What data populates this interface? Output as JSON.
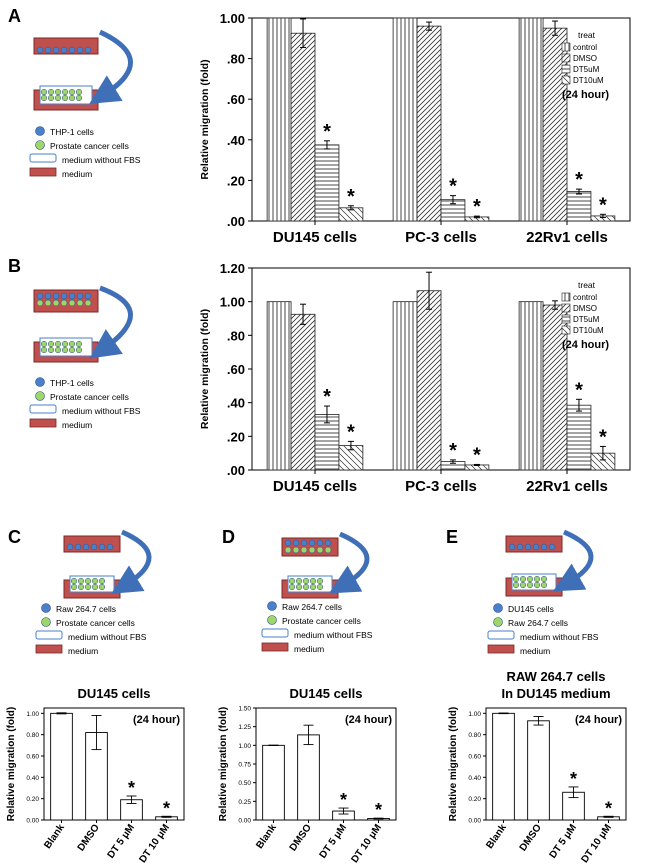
{
  "legend_labels": {
    "thp1": "THP-1 cells",
    "prostate": "Prostate cancer cells",
    "medium_nofbs": "medium without FBS",
    "medium": "medium",
    "raw": "Raw 264.7 cells",
    "du145": "DU145 cells",
    "raw_e": "Raw 264.7 cells"
  },
  "colors": {
    "blue_cell": "#4a7fc9",
    "green_cell": "#9ed66b",
    "medium_red": "#c0504d",
    "arrow_blue": "#3f6fb7"
  },
  "chart_data": [
    {
      "panel": "A",
      "type": "bar",
      "categories": [
        "DU145 cells",
        "PC-3 cells",
        "22Rv1 cells"
      ],
      "series": [
        {
          "name": "control",
          "values": [
            1.0,
            1.0,
            1.0
          ],
          "errors": [
            0,
            0,
            0
          ]
        },
        {
          "name": "DMSO",
          "values": [
            0.925,
            0.96,
            0.95
          ],
          "errors": [
            0.07,
            0.02,
            0.035
          ]
        },
        {
          "name": "DT5uM",
          "values": [
            0.375,
            0.105,
            0.145
          ],
          "errors": [
            0.02,
            0.02,
            0.012
          ]
        },
        {
          "name": "DT10uM",
          "values": [
            0.065,
            0.02,
            0.025
          ],
          "errors": [
            0.01,
            0.004,
            0.008
          ]
        }
      ],
      "significant": [
        [
          false,
          false,
          true,
          true
        ],
        [
          false,
          false,
          true,
          true
        ],
        [
          false,
          false,
          true,
          true
        ]
      ],
      "ylabel": "Relative migration (fold)",
      "yticks": [
        0,
        0.2,
        0.4,
        0.6,
        0.8,
        1.0
      ],
      "ytick_labels": [
        ".00",
        ".20",
        ".40",
        ".60",
        ".80",
        "1.00"
      ],
      "ylim": [
        0,
        1.0
      ],
      "legend_title": "treat",
      "note": "(24 hour)"
    },
    {
      "panel": "B",
      "type": "bar",
      "categories": [
        "DU145 cells",
        "PC-3 cells",
        "22Rv1 cells"
      ],
      "series": [
        {
          "name": "control",
          "values": [
            1.0,
            1.0,
            1.0
          ],
          "errors": [
            0,
            0,
            0
          ]
        },
        {
          "name": "DMSO",
          "values": [
            0.925,
            1.065,
            0.98
          ],
          "errors": [
            0.06,
            0.11,
            0.025
          ]
        },
        {
          "name": "DT5uM",
          "values": [
            0.33,
            0.05,
            0.385
          ],
          "errors": [
            0.05,
            0.01,
            0.035
          ]
        },
        {
          "name": "DT10uM",
          "values": [
            0.145,
            0.03,
            0.1
          ],
          "errors": [
            0.025,
            0.003,
            0.04
          ]
        }
      ],
      "significant": [
        [
          false,
          false,
          true,
          true
        ],
        [
          false,
          false,
          true,
          true
        ],
        [
          false,
          false,
          true,
          true
        ]
      ],
      "ylabel": "Relative migration (fold)",
      "yticks": [
        0,
        0.2,
        0.4,
        0.6,
        0.8,
        1.0,
        1.2
      ],
      "ytick_labels": [
        ".00",
        ".20",
        ".40",
        ".60",
        ".80",
        "1.00",
        "1.20"
      ],
      "ylim": [
        0,
        1.2
      ],
      "legend_title": "treat",
      "note": "(24 hour)"
    },
    {
      "panel": "C",
      "type": "bar",
      "title": "DU145 cells",
      "categories": [
        "Blank",
        "DMSO",
        "DT 5 μM",
        "DT 10 μM"
      ],
      "values": [
        1.0,
        0.82,
        0.19,
        0.03
      ],
      "errors": [
        0.005,
        0.16,
        0.035,
        0.005
      ],
      "significant": [
        false,
        false,
        true,
        true
      ],
      "ylabel": "Relative migration (fold)",
      "yticks": [
        0,
        0.2,
        0.4,
        0.6,
        0.8,
        1.0
      ],
      "ytick_labels": [
        "0.00",
        "0.20",
        "0.40",
        "0.60",
        "0.80",
        "1.00"
      ],
      "ylim": [
        0,
        1.05
      ],
      "note": "(24 hour)"
    },
    {
      "panel": "D",
      "type": "bar",
      "title": "DU145 cells",
      "categories": [
        "Blank",
        "DMSO",
        "DT 5 μM",
        "DT 10 μM"
      ],
      "values": [
        1.0,
        1.14,
        0.12,
        0.02
      ],
      "errors": [
        0.003,
        0.13,
        0.04,
        0.005
      ],
      "significant": [
        false,
        false,
        true,
        true
      ],
      "ylabel": "Relative migration (fold)",
      "yticks": [
        0,
        0.25,
        0.5,
        0.75,
        1.0,
        1.25,
        1.5
      ],
      "ytick_labels": [
        "0.00",
        "0.25",
        "0.50",
        "0.75",
        "1.00",
        "1.25",
        "1.50"
      ],
      "ylim": [
        0,
        1.5
      ],
      "note": "(24 hour)"
    },
    {
      "panel": "E",
      "type": "bar",
      "title": "RAW 264.7 cells",
      "subtitle": "In DU145 medium",
      "categories": [
        "Blank",
        "DMSO",
        "DT 5 μM",
        "DT 10 μM"
      ],
      "values": [
        1.0,
        0.93,
        0.26,
        0.03
      ],
      "errors": [
        0.003,
        0.04,
        0.05,
        0.005
      ],
      "significant": [
        false,
        false,
        true,
        true
      ],
      "ylabel": "Relative migration (fold)",
      "yticks": [
        0,
        0.2,
        0.4,
        0.6,
        0.8,
        1.0
      ],
      "ytick_labels": [
        "0.00",
        "0.20",
        "0.40",
        "0.60",
        "0.80",
        "1.00"
      ],
      "ylim": [
        0,
        1.05
      ],
      "note": "(24 hour)"
    }
  ]
}
